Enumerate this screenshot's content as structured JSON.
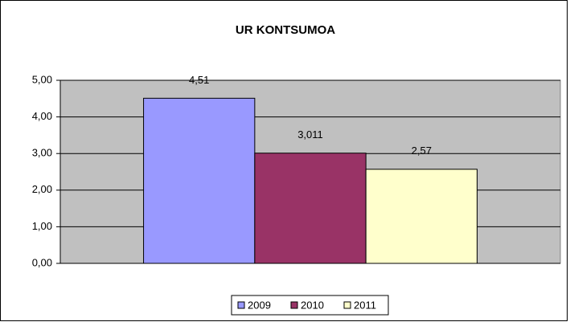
{
  "chart_data": {
    "type": "bar",
    "title": "UR KONTSUMOA",
    "categories": [
      null
    ],
    "series": [
      {
        "name": "2009",
        "color": "#9999ff",
        "values": [
          4.51
        ],
        "value_labels": [
          "4,51"
        ]
      },
      {
        "name": "2010",
        "color": "#993366",
        "values": [
          3.011
        ],
        "value_labels": [
          "3,011"
        ]
      },
      {
        "name": "2011",
        "color": "#ffffcc",
        "values": [
          2.57
        ],
        "value_labels": [
          "2,57"
        ]
      }
    ],
    "ylim": [
      0,
      5
    ],
    "yticks": [
      {
        "value": 0,
        "label": "0,00"
      },
      {
        "value": 1,
        "label": "1,00"
      },
      {
        "value": 2,
        "label": "2,00"
      },
      {
        "value": 3,
        "label": "3,00"
      },
      {
        "value": 4,
        "label": "4,00"
      },
      {
        "value": 5,
        "label": "5,00"
      }
    ],
    "grid": true,
    "legend": "bottom"
  }
}
